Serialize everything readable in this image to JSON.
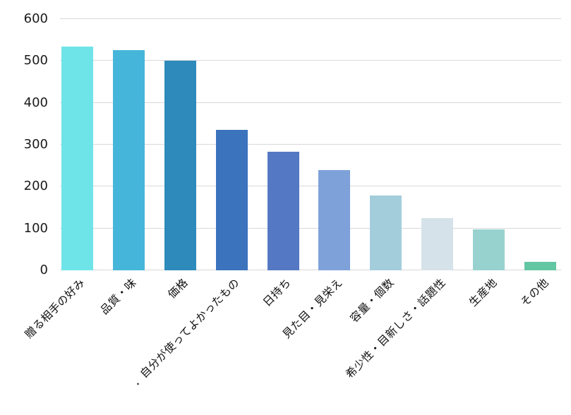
{
  "chart_data": {
    "type": "bar",
    "title": "",
    "xlabel": "",
    "ylabel": "",
    "categories": [
      "贈る相手の好み",
      "品質・味",
      "価格",
      "．自分が使ってよかったもの",
      "日持ち",
      "見た目・見栄え",
      "容量・個数",
      "希少性・目新しさ・話題性",
      "生産地",
      "その他"
    ],
    "values": [
      535,
      526,
      500,
      335,
      284,
      240,
      178,
      125,
      97,
      21
    ],
    "bar_colors": [
      "#6fe4e8",
      "#45b6d9",
      "#2d8aba",
      "#3c73bd",
      "#5478c3",
      "#7ea1d9",
      "#a4cddc",
      "#d6e2e9",
      "#98d2ce",
      "#63c6a3"
    ],
    "ylim": [
      0,
      600
    ],
    "yticks": [
      0,
      100,
      200,
      300,
      400,
      500,
      600
    ],
    "grid": true,
    "gridline_color": "#d9d9d9",
    "tick_label_color": "#1a1a1a",
    "background": "#ffffff",
    "legend_position": "none"
  }
}
